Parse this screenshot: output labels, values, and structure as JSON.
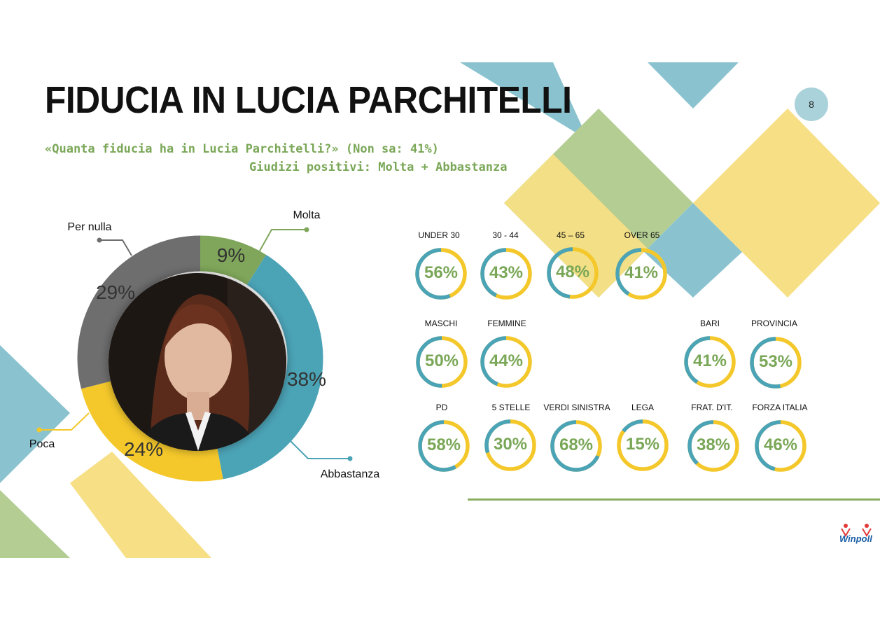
{
  "page": {
    "title": "FIDUCIA IN LUCIA PARCHITELLI",
    "subtitle_question": "«Quanta fiducia ha in Lucia Parchitelli?» (Non sa: 41%)",
    "subtitle_note": "Giudizi positivi: Molta + Abbastanza",
    "page_number": "8",
    "logo_text": "Winpoll"
  },
  "colors": {
    "molta": "#7fa65a",
    "abbastanza": "#4ba3b6",
    "poca": "#f4c82b",
    "per_nulla": "#6e6e6e",
    "ring_positive": "#4ba3b6",
    "ring_rest": "#f4c82b",
    "value_text": "#7aa757",
    "deco_teal": "#8ac3cf",
    "deco_green": "#b3cd93",
    "deco_yellow": "#f7df85"
  },
  "chart_data": [
    {
      "type": "pie",
      "categories": [
        "Molta",
        "Abbastanza",
        "Poca",
        "Per nulla"
      ],
      "values": [
        9,
        38,
        24,
        29
      ],
      "labels": [
        "9%",
        "38%",
        "24%",
        "29%"
      ]
    },
    {
      "type": "pie",
      "rings": [
        {
          "group": "UNDER 30",
          "value": 56,
          "label": "56%"
        },
        {
          "group": "30 - 44",
          "value": 43,
          "label": "43%"
        },
        {
          "group": "45 – 65",
          "value": 48,
          "label": "48%"
        },
        {
          "group": "OVER 65",
          "value": 41,
          "label": "41%"
        },
        {
          "group": "MASCHI",
          "value": 50,
          "label": "50%"
        },
        {
          "group": "FEMMINE",
          "value": 44,
          "label": "44%"
        },
        {
          "group": "BARI",
          "value": 41,
          "label": "41%"
        },
        {
          "group": "PROVINCIA",
          "value": 53,
          "label": "53%"
        },
        {
          "group": "PD",
          "value": 58,
          "label": "58%"
        },
        {
          "group": "5 STELLE",
          "value": 30,
          "label": "30%"
        },
        {
          "group": "VERDI SINISTRA",
          "value": 68,
          "label": "68%"
        },
        {
          "group": "LEGA",
          "value": 15,
          "label": "15%"
        },
        {
          "group": "FRAT. D'IT.",
          "value": 38,
          "label": "38%"
        },
        {
          "group": "FORZA ITALIA",
          "value": 46,
          "label": "46%"
        }
      ]
    }
  ]
}
